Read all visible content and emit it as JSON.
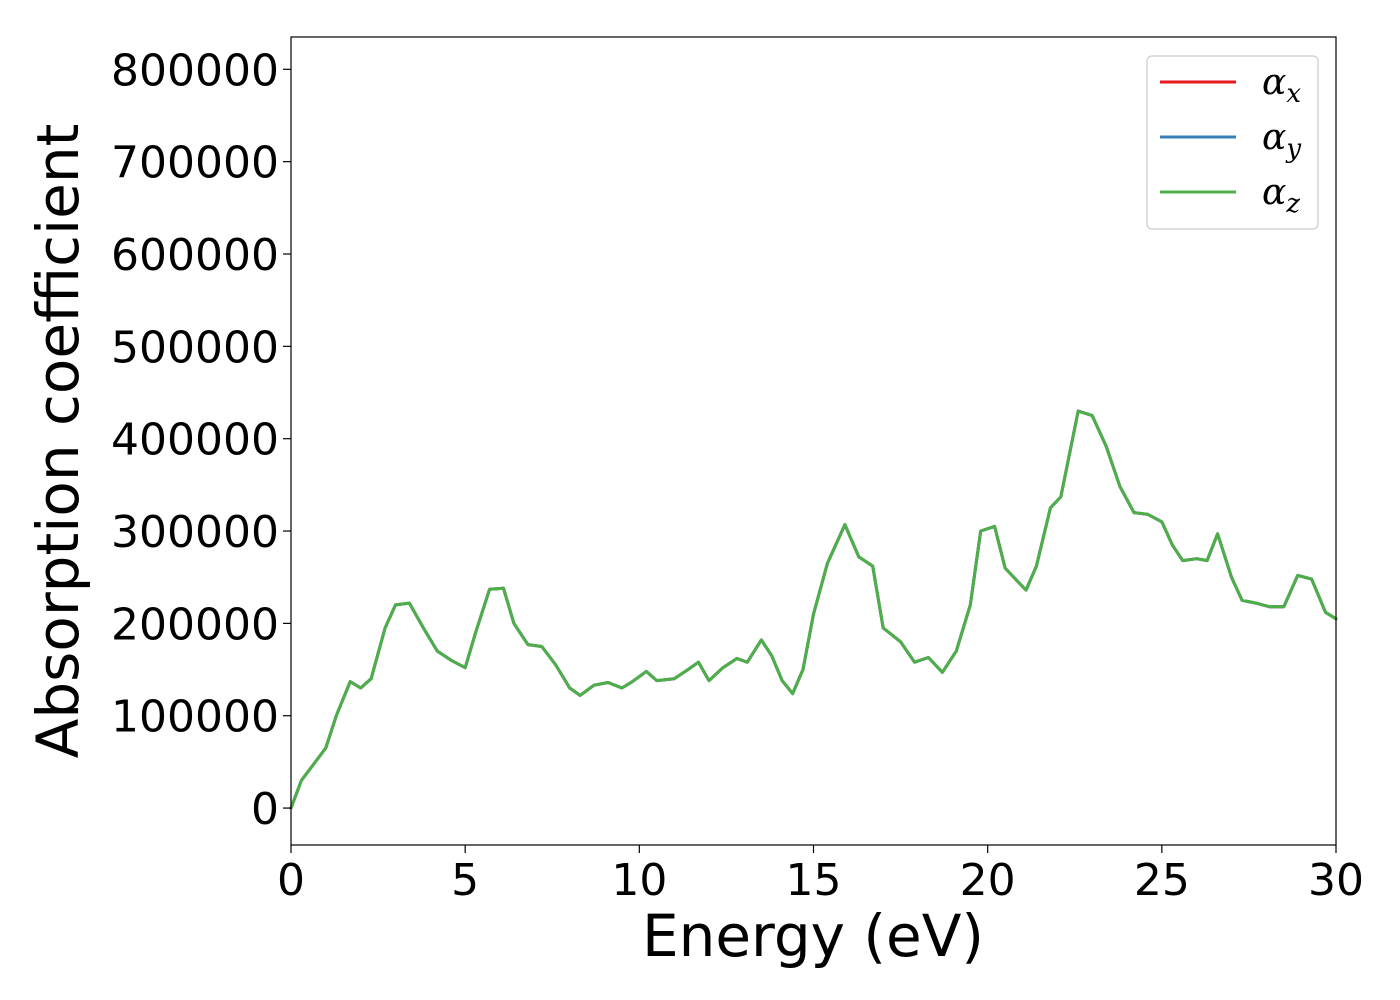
{
  "chart_data": {
    "type": "line",
    "title": "",
    "xlabel": "Energy (eV)",
    "ylabel": "Absorption coefficient",
    "xlim": [
      0,
      30
    ],
    "ylim": [
      -40000,
      835000
    ],
    "xticks": [
      0,
      5,
      10,
      15,
      20,
      25,
      30
    ],
    "yticks": [
      0,
      100000,
      200000,
      300000,
      400000,
      500000,
      600000,
      700000,
      800000
    ],
    "grid": false,
    "legend_position": "top-right",
    "series": [
      {
        "name": "αx",
        "base": "α",
        "sub": "x",
        "color": "#e41a1c",
        "x": [
          0,
          0.3,
          0.6,
          1,
          1.3,
          1.7,
          2,
          2.3,
          2.7,
          3,
          3.4,
          3.8,
          4.2,
          4.6,
          5,
          5.3,
          5.7,
          6.1,
          6.4,
          6.8,
          7.2,
          7.6,
          8,
          8.3,
          8.7,
          9.1,
          9.5,
          9.8,
          10.2,
          10.5,
          11,
          11.4,
          11.7,
          12,
          12.4,
          12.8,
          13.1,
          13.5,
          13.8,
          14.1,
          14.4,
          14.7,
          15,
          15.4,
          15.9,
          16.3,
          16.7,
          17,
          17.5,
          17.9,
          18.3,
          18.7,
          19.1,
          19.5,
          19.8,
          20.2,
          20.5,
          20.8,
          21.1,
          21.4,
          21.8,
          22.1,
          22.6,
          23,
          23.4,
          23.8,
          24.2,
          24.6,
          25,
          25.3,
          25.6,
          26,
          26.3,
          26.6,
          27,
          27.3,
          27.7,
          28.1,
          28.5,
          28.9,
          29.3,
          29.7,
          30
        ],
        "y": [
          0,
          30000,
          45000,
          65000,
          100000,
          137000,
          130000,
          140000,
          195000,
          220000,
          222000,
          195000,
          170000,
          160000,
          152000,
          190000,
          237000,
          238000,
          200000,
          177000,
          175000,
          155000,
          130000,
          122000,
          133000,
          136000,
          130000,
          137000,
          148000,
          138000,
          140000,
          150000,
          158000,
          138000,
          152000,
          162000,
          158000,
          182000,
          165000,
          138000,
          124000,
          150000,
          210000,
          265000,
          307000,
          272000,
          262000,
          195000,
          180000,
          158000,
          163000,
          147000,
          170000,
          220000,
          300000,
          305000,
          260000,
          248000,
          236000,
          262000,
          325000,
          337000,
          430000,
          425000,
          392000,
          348000,
          320000,
          318000,
          310000,
          285000,
          268000,
          270000,
          268000,
          297000,
          250000,
          225000,
          222000,
          218000,
          218000,
          252000,
          248000,
          212000,
          205000
        ]
      },
      {
        "name": "αy",
        "base": "α",
        "sub": "y",
        "color": "#377eb8",
        "x": [
          0,
          0.3,
          0.6,
          1,
          1.3,
          1.7,
          2,
          2.3,
          2.7,
          3,
          3.4,
          3.8,
          4.2,
          4.6,
          5,
          5.3,
          5.7,
          6.1,
          6.4,
          6.8,
          7.2,
          7.6,
          8,
          8.3,
          8.7,
          9.1,
          9.5,
          9.8,
          10.2,
          10.5,
          11,
          11.4,
          11.7,
          12,
          12.4,
          12.8,
          13.1,
          13.5,
          13.8,
          14.1,
          14.4,
          14.7,
          15,
          15.4,
          15.9,
          16.3,
          16.7,
          17,
          17.5,
          17.9,
          18.3,
          18.7,
          19.1,
          19.5,
          19.8,
          20.2,
          20.5,
          20.8,
          21.1,
          21.4,
          21.8,
          22.1,
          22.6,
          23,
          23.4,
          23.8,
          24.2,
          24.6,
          25,
          25.3,
          25.6,
          26,
          26.3,
          26.6,
          27,
          27.3,
          27.7,
          28.1,
          28.5,
          28.9,
          29.3,
          29.7,
          30
        ],
        "y": [
          0,
          30000,
          45000,
          65000,
          100000,
          137000,
          130000,
          140000,
          195000,
          220000,
          222000,
          195000,
          170000,
          160000,
          152000,
          190000,
          237000,
          238000,
          200000,
          177000,
          175000,
          155000,
          130000,
          122000,
          133000,
          136000,
          130000,
          137000,
          148000,
          138000,
          140000,
          150000,
          158000,
          138000,
          152000,
          162000,
          158000,
          182000,
          165000,
          138000,
          124000,
          150000,
          210000,
          265000,
          307000,
          272000,
          262000,
          195000,
          180000,
          158000,
          163000,
          147000,
          170000,
          220000,
          300000,
          305000,
          260000,
          248000,
          236000,
          262000,
          325000,
          337000,
          430000,
          425000,
          392000,
          348000,
          320000,
          318000,
          310000,
          285000,
          268000,
          270000,
          268000,
          297000,
          250000,
          225000,
          222000,
          218000,
          218000,
          252000,
          248000,
          212000,
          205000
        ]
      },
      {
        "name": "αz",
        "base": "α",
        "sub": "z",
        "color": "#4daf4a",
        "x": [
          0,
          0.3,
          0.6,
          1,
          1.3,
          1.7,
          2,
          2.3,
          2.7,
          3,
          3.4,
          3.8,
          4.2,
          4.6,
          5,
          5.3,
          5.7,
          6.1,
          6.4,
          6.8,
          7.2,
          7.6,
          8,
          8.3,
          8.7,
          9.1,
          9.5,
          9.8,
          10.2,
          10.5,
          11,
          11.4,
          11.7,
          12,
          12.4,
          12.8,
          13.1,
          13.5,
          13.8,
          14.1,
          14.4,
          14.7,
          15,
          15.4,
          15.9,
          16.3,
          16.7,
          17,
          17.5,
          17.9,
          18.3,
          18.7,
          19.1,
          19.5,
          19.8,
          20.2,
          20.5,
          20.8,
          21.1,
          21.4,
          21.8,
          22.1,
          22.6,
          23,
          23.4,
          23.8,
          24.2,
          24.6,
          25,
          25.3,
          25.6,
          26,
          26.3,
          26.6,
          27,
          27.3,
          27.7,
          28.1,
          28.5,
          28.9,
          29.3,
          29.7,
          30
        ],
        "y": [
          0,
          30000,
          45000,
          65000,
          100000,
          137000,
          130000,
          140000,
          195000,
          220000,
          222000,
          195000,
          170000,
          160000,
          152000,
          190000,
          237000,
          238000,
          200000,
          177000,
          175000,
          155000,
          130000,
          122000,
          133000,
          136000,
          130000,
          137000,
          148000,
          138000,
          140000,
          150000,
          158000,
          138000,
          152000,
          162000,
          158000,
          182000,
          165000,
          138000,
          124000,
          150000,
          210000,
          265000,
          307000,
          272000,
          262000,
          195000,
          180000,
          158000,
          163000,
          147000,
          170000,
          220000,
          300000,
          305000,
          260000,
          248000,
          236000,
          262000,
          325000,
          337000,
          430000,
          425000,
          392000,
          348000,
          320000,
          318000,
          310000,
          285000,
          268000,
          270000,
          268000,
          297000,
          250000,
          225000,
          222000,
          218000,
          218000,
          252000,
          248000,
          212000,
          205000
        ]
      }
    ]
  }
}
